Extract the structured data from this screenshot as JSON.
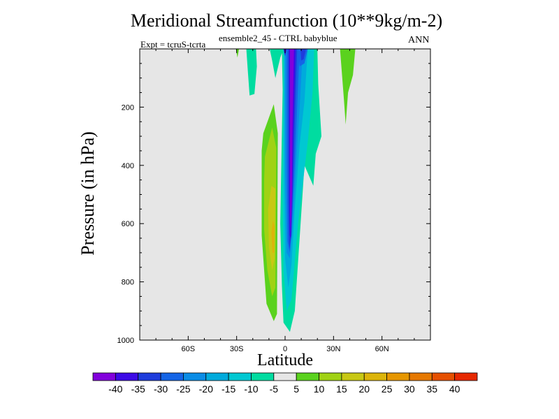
{
  "chart_data": {
    "type": "heatmap",
    "title": "Meridional Streamfunction (10**9kg/m-2)",
    "subtitle": "ensemble2_45 - CTRL babyblue",
    "experiment": "Expt = tcruS-tcrta",
    "season": "ANN",
    "xlabel": "Latitude",
    "ylabel": "Pressure (in hPa)",
    "xlim": [
      -90,
      90
    ],
    "ylim": [
      1000,
      0
    ],
    "x_ticks": [
      {
        "value": -60,
        "label": "60S"
      },
      {
        "value": -30,
        "label": "30S"
      },
      {
        "value": 0,
        "label": "0"
      },
      {
        "value": 30,
        "label": "30N"
      },
      {
        "value": 60,
        "label": "60N"
      }
    ],
    "y_ticks": [
      {
        "value": 200,
        "label": "200"
      },
      {
        "value": 400,
        "label": "400"
      },
      {
        "value": 600,
        "label": "600"
      },
      {
        "value": 800,
        "label": "800"
      },
      {
        "value": 1000,
        "label": "1000"
      }
    ],
    "background_color": "#e6e6e6",
    "contour_levels": [
      -40,
      -35,
      -30,
      -25,
      -20,
      -15,
      -10,
      -5,
      5,
      10,
      15,
      20,
      25,
      30,
      35,
      40
    ],
    "colorbar_colors": [
      "#8200dc",
      "#3c0ae6",
      "#1e3cdc",
      "#1464e6",
      "#0a8ce6",
      "#00aadc",
      "#00c8d2",
      "#00dca0",
      "#e6e6e6",
      "#5ad21e",
      "#a0d214",
      "#c8c814",
      "#dcb40a",
      "#e69600",
      "#e67800",
      "#e65000",
      "#e62800"
    ],
    "regions": [
      {
        "color": "#5ad21e",
        "points": [
          [
            -30.5,
            0
          ],
          [
            -28.5,
            0
          ],
          [
            -29.5,
            30
          ]
        ]
      },
      {
        "color": "#00dca0",
        "points": [
          [
            -24,
            0
          ],
          [
            -18,
            0
          ],
          [
            -17.5,
            60
          ],
          [
            -19,
            155
          ],
          [
            -22,
            160
          ],
          [
            -23,
            80
          ]
        ]
      },
      {
        "color": "#00dca0",
        "points": [
          [
            -9.5,
            0
          ],
          [
            -1,
            0
          ],
          [
            -3,
            30
          ],
          [
            -6,
            100
          ],
          [
            -8,
            40
          ]
        ]
      },
      {
        "color": "#00dca0",
        "points": [
          [
            -2,
            0
          ],
          [
            20,
            0
          ],
          [
            20.5,
            120
          ],
          [
            22.5,
            300
          ],
          [
            19,
            360
          ],
          [
            17.5,
            470
          ],
          [
            12,
            400
          ],
          [
            6,
            900
          ],
          [
            3,
            972
          ],
          [
            -1,
            940
          ],
          [
            -2,
            810
          ],
          [
            -3,
            600
          ],
          [
            -1.5,
            140
          ]
        ]
      },
      {
        "color": "#00c8d2",
        "points": [
          [
            -1,
            0
          ],
          [
            18,
            0
          ],
          [
            17,
            150
          ],
          [
            14,
            320
          ],
          [
            8,
            600
          ],
          [
            4,
            860
          ],
          [
            1,
            900
          ],
          [
            -1,
            760
          ],
          [
            -1.5,
            500
          ],
          [
            -1,
            160
          ]
        ]
      },
      {
        "color": "#00aadc",
        "points": [
          [
            -0.5,
            0
          ],
          [
            14,
            0
          ],
          [
            12,
            180
          ],
          [
            9,
            330
          ],
          [
            6,
            550
          ],
          [
            4,
            740
          ],
          [
            2,
            820
          ],
          [
            0,
            720
          ],
          [
            -0.5,
            450
          ]
        ]
      },
      {
        "color": "#0a8ce6",
        "points": [
          [
            0,
            0
          ],
          [
            11,
            0
          ],
          [
            9,
            200
          ],
          [
            7,
            380
          ],
          [
            5,
            580
          ],
          [
            3,
            720
          ],
          [
            1,
            700
          ],
          [
            0,
            420
          ]
        ]
      },
      {
        "color": "#1464e6",
        "points": [
          [
            1,
            0
          ],
          [
            9,
            0
          ],
          [
            7.5,
            200
          ],
          [
            6,
            400
          ],
          [
            4,
            620
          ],
          [
            3,
            700
          ],
          [
            1.5,
            660
          ],
          [
            1,
            380
          ]
        ]
      },
      {
        "color": "#1e3cdc",
        "points": [
          [
            2,
            0
          ],
          [
            7.5,
            0
          ],
          [
            6,
            250
          ],
          [
            5,
            450
          ],
          [
            4,
            640
          ],
          [
            2.5,
            690
          ],
          [
            2,
            500
          ],
          [
            2,
            250
          ]
        ]
      },
      {
        "color": "#3c0ae6",
        "points": [
          [
            2.5,
            0
          ],
          [
            6.5,
            0
          ],
          [
            5,
            300
          ],
          [
            4.5,
            480
          ],
          [
            3.5,
            650
          ],
          [
            2.8,
            640
          ],
          [
            2.5,
            400
          ]
        ]
      },
      {
        "color": "#8200dc",
        "points": [
          [
            3,
            0
          ],
          [
            5.5,
            0
          ],
          [
            4.5,
            300
          ],
          [
            4.2,
            500
          ],
          [
            3.5,
            630
          ],
          [
            3.2,
            580
          ],
          [
            3,
            350
          ]
        ]
      },
      {
        "color": "#1464e6",
        "points": [
          [
            8,
            0
          ],
          [
            14,
            0
          ],
          [
            12,
            50
          ],
          [
            9,
            60
          ]
        ]
      },
      {
        "color": "#1e3cdc",
        "points": [
          [
            9.5,
            0
          ],
          [
            13,
            0
          ],
          [
            11.5,
            35
          ],
          [
            10,
            40
          ]
        ]
      },
      {
        "color": "#3c0ae6",
        "points": [
          [
            -1,
            0
          ],
          [
            1,
            0
          ],
          [
            0,
            25
          ]
        ]
      },
      {
        "color": "#5ad21e",
        "points": [
          [
            -14.5,
            350
          ],
          [
            -13.5,
            290
          ],
          [
            -7,
            190
          ],
          [
            -4.5,
            290
          ],
          [
            -5,
            910
          ],
          [
            -7,
            935
          ],
          [
            -11.5,
            875
          ],
          [
            -14.5,
            640
          ]
        ]
      },
      {
        "color": "#a0d214",
        "points": [
          [
            -13,
            450
          ],
          [
            -12.5,
            370
          ],
          [
            -8,
            270
          ],
          [
            -5.5,
            340
          ],
          [
            -6,
            820
          ],
          [
            -8,
            850
          ],
          [
            -11,
            760
          ],
          [
            -13,
            620
          ]
        ]
      },
      {
        "color": "#c8c814",
        "points": [
          [
            -10.5,
            550
          ],
          [
            -8.5,
            470
          ],
          [
            -6,
            480
          ],
          [
            -6.5,
            720
          ],
          [
            -8,
            760
          ],
          [
            -10,
            680
          ]
        ]
      },
      {
        "color": "#dcb40a",
        "points": [
          [
            -8.5,
            630
          ],
          [
            -7.5,
            590
          ],
          [
            -6.5,
            610
          ],
          [
            -6.8,
            700
          ],
          [
            -7.8,
            700
          ]
        ]
      },
      {
        "color": "#5ad21e",
        "points": [
          [
            34,
            0
          ],
          [
            43.5,
            0
          ],
          [
            42,
            90
          ],
          [
            39,
            150
          ],
          [
            37.5,
            260
          ],
          [
            36.5,
            180
          ]
        ]
      }
    ]
  }
}
